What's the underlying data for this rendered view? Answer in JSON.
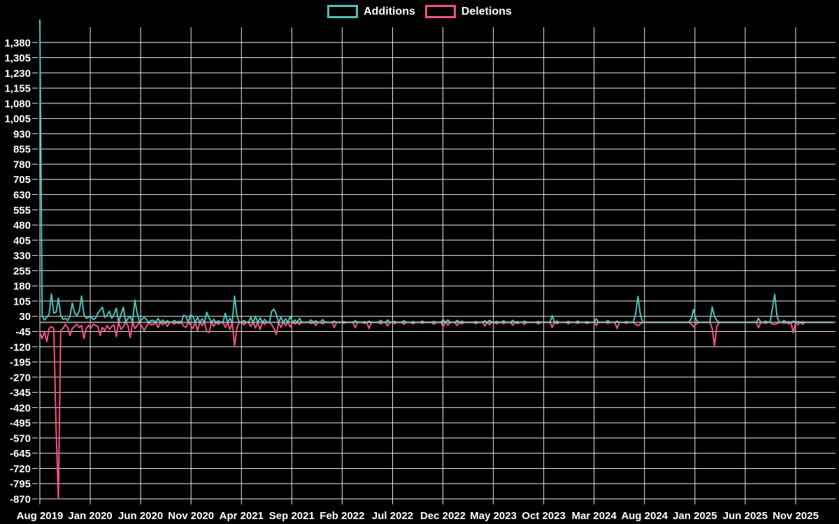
{
  "legend": {
    "items": [
      {
        "label": "Additions",
        "color": "#4cc2ba"
      },
      {
        "label": "Deletions",
        "color": "#f5537f"
      }
    ]
  },
  "chart_data": {
    "type": "line",
    "title": "",
    "xlabel": "",
    "ylabel": "",
    "legend_position": "top-center",
    "grid": true,
    "background_color": "#000000",
    "grid_color": "#ffffff",
    "zero_line_color": "#b8bfc6",
    "text_color": "#ffffff",
    "x_tick_labels": [
      "Aug 2019",
      "Jan 2020",
      "Jun 2020",
      "Nov 2020",
      "Apr 2021",
      "Sep 2021",
      "Feb 2022",
      "Jul 2022",
      "Dec 2022",
      "May 2023",
      "Oct 2023",
      "Mar 2024",
      "Aug 2024",
      "Jan 2025",
      "Jun 2025",
      "Nov 2025"
    ],
    "y_tick_labels": [
      "1,380",
      "1,305",
      "1,230",
      "1,155",
      "1,080",
      "1,005",
      "930",
      "855",
      "780",
      "705",
      "630",
      "555",
      "480",
      "405",
      "330",
      "255",
      "180",
      "105",
      "30",
      "-45",
      "-120",
      "-195",
      "-270",
      "-345",
      "-420",
      "-495",
      "-570",
      "-645",
      "-720",
      "-795",
      "-870"
    ],
    "y_tick_values": [
      1380,
      1305,
      1230,
      1155,
      1080,
      1005,
      930,
      855,
      780,
      705,
      630,
      555,
      480,
      405,
      330,
      255,
      180,
      105,
      30,
      -45,
      -120,
      -195,
      -270,
      -345,
      -420,
      -495,
      -570,
      -645,
      -720,
      -795,
      -870
    ],
    "y_axis_range": [
      -870,
      1455
    ],
    "x_unit": "week",
    "weeks_total": 343,
    "series": [
      {
        "name": "Additions",
        "color": "#4cc2ba"
      },
      {
        "name": "Deletions",
        "color": "#f5537f"
      }
    ],
    "points_sparse_format": [
      "week_index",
      "additions",
      "deletions"
    ],
    "points": [
      [
        0,
        1490,
        -50
      ],
      [
        1,
        30,
        -80
      ],
      [
        2,
        12,
        -45
      ],
      [
        3,
        25,
        -95
      ],
      [
        4,
        40,
        -30
      ],
      [
        5,
        140,
        -20
      ],
      [
        6,
        45,
        -30
      ],
      [
        7,
        50,
        -520
      ],
      [
        8,
        120,
        -870
      ],
      [
        9,
        35,
        -40
      ],
      [
        10,
        15,
        -30
      ],
      [
        11,
        20,
        -10
      ],
      [
        12,
        10,
        -25
      ],
      [
        13,
        30,
        -65
      ],
      [
        14,
        95,
        -30
      ],
      [
        15,
        45,
        -20
      ],
      [
        16,
        35,
        -10
      ],
      [
        17,
        55,
        -25
      ],
      [
        18,
        130,
        -15
      ],
      [
        19,
        40,
        -80
      ],
      [
        20,
        20,
        -30
      ],
      [
        21,
        25,
        -15
      ],
      [
        22,
        30,
        -30
      ],
      [
        23,
        15,
        -10
      ],
      [
        24,
        20,
        -15
      ],
      [
        25,
        45,
        -20
      ],
      [
        26,
        60,
        -65
      ],
      [
        27,
        75,
        -25
      ],
      [
        28,
        25,
        -40
      ],
      [
        29,
        35,
        -15
      ],
      [
        30,
        55,
        -35
      ],
      [
        31,
        20,
        -20
      ],
      [
        32,
        40,
        -12
      ],
      [
        33,
        70,
        -70
      ],
      [
        35,
        40,
        -35
      ],
      [
        36,
        75,
        -20
      ],
      [
        38,
        20,
        -15
      ],
      [
        39,
        30,
        -75
      ],
      [
        41,
        110,
        -30
      ],
      [
        42,
        45,
        -15
      ],
      [
        44,
        15,
        -20
      ],
      [
        45,
        25,
        -40
      ],
      [
        46,
        15,
        -20
      ],
      [
        48,
        10,
        -12
      ],
      [
        49,
        10,
        -10
      ],
      [
        51,
        20,
        -25
      ],
      [
        53,
        12,
        -12
      ],
      [
        55,
        8,
        -20
      ],
      [
        58,
        10,
        -8
      ],
      [
        60,
        6,
        -6
      ],
      [
        62,
        35,
        -18
      ],
      [
        63,
        30,
        -25
      ],
      [
        65,
        38,
        -12
      ],
      [
        66,
        30,
        -30
      ],
      [
        68,
        25,
        -40
      ],
      [
        70,
        18,
        -15
      ],
      [
        72,
        50,
        -45
      ],
      [
        73,
        22,
        -50
      ],
      [
        75,
        15,
        -20
      ],
      [
        77,
        8,
        -10
      ],
      [
        80,
        45,
        -25
      ],
      [
        82,
        20,
        -35
      ],
      [
        84,
        130,
        -115
      ],
      [
        85,
        35,
        -30
      ],
      [
        88,
        10,
        -12
      ],
      [
        91,
        25,
        -20
      ],
      [
        93,
        30,
        -28
      ],
      [
        95,
        22,
        -35
      ],
      [
        97,
        15,
        -10
      ],
      [
        100,
        55,
        -12
      ],
      [
        101,
        65,
        -30
      ],
      [
        102,
        40,
        -60
      ],
      [
        104,
        25,
        -25
      ],
      [
        106,
        18,
        -15
      ],
      [
        108,
        30,
        -22
      ],
      [
        110,
        12,
        -8
      ],
      [
        112,
        20,
        -10
      ],
      [
        117,
        12,
        -6
      ],
      [
        119,
        8,
        -15
      ],
      [
        122,
        14,
        -8
      ],
      [
        127,
        6,
        -25
      ],
      [
        131,
        5,
        -5
      ],
      [
        136,
        8,
        -26
      ],
      [
        140,
        4,
        -6
      ],
      [
        142,
        6,
        -30
      ],
      [
        147,
        10,
        -8
      ],
      [
        150,
        12,
        -18
      ],
      [
        153,
        5,
        -6
      ],
      [
        157,
        8,
        -10
      ],
      [
        161,
        4,
        -8
      ],
      [
        165,
        6,
        -5
      ],
      [
        170,
        5,
        -10
      ],
      [
        174,
        14,
        -22
      ],
      [
        176,
        12,
        -14
      ],
      [
        180,
        10,
        -16
      ],
      [
        182,
        6,
        -8
      ],
      [
        188,
        4,
        -6
      ],
      [
        192,
        8,
        -18
      ],
      [
        194,
        10,
        -12
      ],
      [
        197,
        5,
        -8
      ],
      [
        200,
        8,
        -6
      ],
      [
        204,
        10,
        -14
      ],
      [
        206,
        4,
        -6
      ],
      [
        209,
        6,
        -10
      ],
      [
        215,
        5,
        -8
      ],
      [
        221,
        33,
        -25
      ],
      [
        223,
        6,
        -6
      ],
      [
        228,
        5,
        -7
      ],
      [
        232,
        6,
        -5
      ],
      [
        236,
        4,
        -6
      ],
      [
        240,
        18,
        -15
      ],
      [
        245,
        9,
        -5
      ],
      [
        249,
        6,
        -30
      ],
      [
        253,
        4,
        -5
      ],
      [
        257,
        45,
        -10
      ],
      [
        258,
        128,
        -16
      ],
      [
        259,
        40,
        -8
      ],
      [
        281,
        20,
        -8
      ],
      [
        282,
        64,
        -22
      ],
      [
        283,
        15,
        -10
      ],
      [
        290,
        76,
        -30
      ],
      [
        291,
        30,
        -115
      ],
      [
        292,
        10,
        -20
      ],
      [
        310,
        20,
        -26
      ],
      [
        313,
        6,
        -5
      ],
      [
        316,
        70,
        -8
      ],
      [
        317,
        138,
        -10
      ],
      [
        318,
        30,
        -6
      ],
      [
        321,
        10,
        -5
      ],
      [
        323,
        4,
        -8
      ],
      [
        325,
        6,
        -52
      ],
      [
        327,
        5,
        -12
      ],
      [
        329,
        3,
        -10
      ]
    ]
  }
}
